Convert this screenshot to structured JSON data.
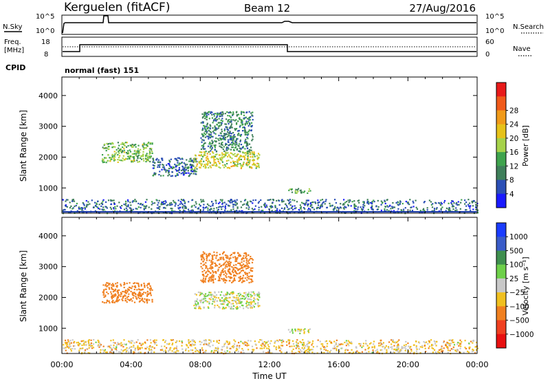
{
  "header": {
    "station": "Kerguelen (fitACF)",
    "beam": "Beam 12",
    "date": "27/Aug/2016"
  },
  "sky_panel": {
    "left_label": "N.Sky",
    "left_ticks": [
      "10^5",
      "10^0"
    ],
    "right_label": "N.Search",
    "right_ticks": [
      "10^5",
      "10^0"
    ]
  },
  "freq_panel": {
    "left_label_1": "Freq.",
    "left_label_2": "[MHz]",
    "left_ticks": [
      "18",
      "8"
    ],
    "right_label": "Nave",
    "right_ticks": [
      "60",
      "0"
    ]
  },
  "cpid": {
    "label": "CPID",
    "value": "normal (fast) 151"
  },
  "colors": {
    "power_scale": [
      "#1a1aff",
      "#2b4fb5",
      "#3f7f5a",
      "#3fa34d",
      "#a6d24a",
      "#e6c21a",
      "#f09a1a",
      "#f05a1a",
      "#e81a1a"
    ],
    "velocity_scale": [
      "#1a3cff",
      "#3a5cc8",
      "#3f8f4f",
      "#6ed04a",
      "#c8c8c8",
      "#f0c020",
      "#f08020",
      "#f04020",
      "#e81010"
    ]
  },
  "chart_data": [
    {
      "type": "heatmap",
      "title": "",
      "xlabel": "Time UT",
      "ylabel": "Slant Range [km]",
      "xlim_hours": [
        0,
        24
      ],
      "ylim": [
        180,
        4600
      ],
      "x_ticks": [
        "00:00",
        "04:00",
        "08:00",
        "12:00",
        "16:00",
        "20:00",
        "00:00"
      ],
      "y_ticks": [
        1000,
        2000,
        3000,
        4000
      ],
      "colorbar": {
        "label": "Power [dB]",
        "ticks": [
          "4",
          "8",
          "12",
          "16",
          "20",
          "24",
          "28"
        ]
      },
      "echo_regions": [
        {
          "t_start": 2.3,
          "t_end": 5.2,
          "r_min": 1850,
          "r_max": 2500,
          "power_db": 14
        },
        {
          "t_start": 5.2,
          "t_end": 7.8,
          "r_min": 1400,
          "r_max": 2000,
          "power_db": 6
        },
        {
          "t_start": 7.6,
          "t_end": 11.4,
          "r_min": 1650,
          "r_max": 2200,
          "power_db": 18
        },
        {
          "t_start": 8.0,
          "t_end": 11.0,
          "r_min": 2200,
          "r_max": 3500,
          "power_db": 8
        },
        {
          "t_start": 13.0,
          "t_end": 14.4,
          "r_min": 850,
          "r_max": 1000,
          "power_db": 12
        },
        {
          "t_start": 0.0,
          "t_end": 24.0,
          "r_min": 200,
          "r_max": 650,
          "power_db": 6
        }
      ]
    },
    {
      "type": "heatmap",
      "title": "",
      "xlabel": "Time UT",
      "ylabel": "Slant Range [km]",
      "xlim_hours": [
        0,
        24
      ],
      "ylim": [
        180,
        4600
      ],
      "x_ticks": [
        "00:00",
        "04:00",
        "08:00",
        "12:00",
        "16:00",
        "20:00",
        "00:00"
      ],
      "y_ticks": [
        1000,
        2000,
        3000,
        4000
      ],
      "colorbar": {
        "label": "Velocity [m s⁻¹]",
        "ticks": [
          "1000",
          "500",
          "100",
          "25",
          "−25",
          "−100",
          "−500",
          "−1000"
        ]
      },
      "echo_regions": [
        {
          "t_start": 2.3,
          "t_end": 5.2,
          "r_min": 1850,
          "r_max": 2500,
          "velocity": -300
        },
        {
          "t_start": 7.6,
          "t_end": 11.4,
          "r_min": 1650,
          "r_max": 2200,
          "velocity": 0
        },
        {
          "t_start": 8.0,
          "t_end": 11.0,
          "r_min": 2500,
          "r_max": 3500,
          "velocity": -400
        },
        {
          "t_start": 13.0,
          "t_end": 14.4,
          "r_min": 850,
          "r_max": 1000,
          "velocity": 0
        },
        {
          "t_start": 0.0,
          "t_end": 24.0,
          "r_min": 200,
          "r_max": 650,
          "velocity": -50
        }
      ]
    }
  ]
}
